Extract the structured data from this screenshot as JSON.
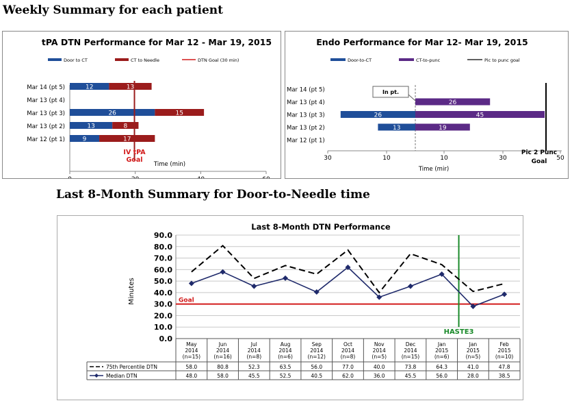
{
  "page": {
    "heading_weekly": "Weekly Summary for each patient",
    "heading_monthly": "Last 8-Month Summary for Door-to-Needle time"
  },
  "colors": {
    "blue": "#1f4e99",
    "dark_red": "#9b1c1c",
    "red": "#d21a1a",
    "purple": "#5b2a86",
    "navy": "#1f2a6b",
    "green": "#1a8a2a"
  },
  "chart_data": [
    {
      "type": "bar",
      "stacked": true,
      "orientation": "horizontal",
      "title": "tPA DTN Performance for Mar 12 - Mar 19, 2015",
      "legend": [
        "Door to CT",
        "CT to Needle",
        "DTN Goal (30 min)"
      ],
      "categories": [
        "Mar 14 (pt 5)",
        "Mar 13 (pt 4)",
        "Mar 13 (pt 3)",
        "Mar 13 (pt 2)",
        "Mar 12 (pt 1)"
      ],
      "series": [
        {
          "name": "Door to CT",
          "values": [
            12,
            null,
            26,
            13,
            9
          ]
        },
        {
          "name": "CT to Needle",
          "values": [
            13,
            null,
            15,
            8,
            17
          ]
        }
      ],
      "xlim": [
        0,
        60
      ],
      "xticks": [
        "0",
        "20",
        "40",
        "60"
      ],
      "xlabel": "Time (min)",
      "goal": {
        "value": 30,
        "label": "IV tPA Goal"
      }
    },
    {
      "type": "bar",
      "stacked": true,
      "orientation": "horizontal",
      "title": "Endo Performance for Mar 12- Mar 19, 2015",
      "legend": [
        "Door-to-CT",
        "CT-to-punc",
        "Pic to punc goal"
      ],
      "categories": [
        "Mar 14 (pt 5)",
        "Mar 13 (pt 4)",
        "Mar 13 (pt 3)",
        "Mar 13 (pt 2)",
        "Mar 12 (pt 1)"
      ],
      "series": [
        {
          "name": "Door-to-CT",
          "values": [
            null,
            null,
            26,
            13,
            null
          ]
        },
        {
          "name": "CT-to-punc",
          "values": [
            null,
            26,
            45,
            19,
            null
          ]
        }
      ],
      "xticks": [
        "30",
        "10",
        "10",
        "30",
        "50"
      ],
      "xlabel": "Time (mir)",
      "annotation": "In pt.",
      "goal": {
        "value": 45,
        "label": "Pic 2 Punc Goal"
      }
    },
    {
      "type": "line",
      "title": "Last 8-Month DTN Performance",
      "ylabel": "Minutes",
      "ylim": [
        0,
        90
      ],
      "yticks": [
        "0.0",
        "10.0",
        "20.0",
        "30.0",
        "40.0",
        "50.0",
        "60.0",
        "70.0",
        "80.0",
        "90.0"
      ],
      "categories": [
        [
          "May",
          "2014",
          "(n=15)"
        ],
        [
          "Jun",
          "2014",
          "(n=16)"
        ],
        [
          "Jul",
          "2014",
          "(n=8)"
        ],
        [
          "Aug",
          "2014",
          "(n=6)"
        ],
        [
          "Sep",
          "2014",
          "(n=12)"
        ],
        [
          "Oct",
          "2014",
          "(n=8)"
        ],
        [
          "Nov",
          "2014",
          "(n=5)"
        ],
        [
          "Dec",
          "2014",
          "(n=15)"
        ],
        [
          "Jan",
          "2015",
          "(n=6)"
        ],
        [
          "Jan",
          "2015",
          "(n=5)"
        ],
        [
          "Feb",
          "2015",
          "(n=10)"
        ]
      ],
      "series": [
        {
          "name": "75th Percentile DTN",
          "values": [
            "58.0",
            "80.8",
            "52.3",
            "63.5",
            "56.0",
            "77.0",
            "40.0",
            "73.8",
            "64.3",
            "41.0",
            "47.8"
          ]
        },
        {
          "name": "Median DTN",
          "values": [
            "48.0",
            "58.0",
            "45.5",
            "52.5",
            "40.5",
            "62.0",
            "36.0",
            "45.5",
            "56.0",
            "28.0",
            "38.5"
          ]
        }
      ],
      "goal": {
        "value": 30,
        "label": "Goal"
      },
      "marker": {
        "after_index": 8,
        "label": "HASTE3"
      }
    }
  ]
}
